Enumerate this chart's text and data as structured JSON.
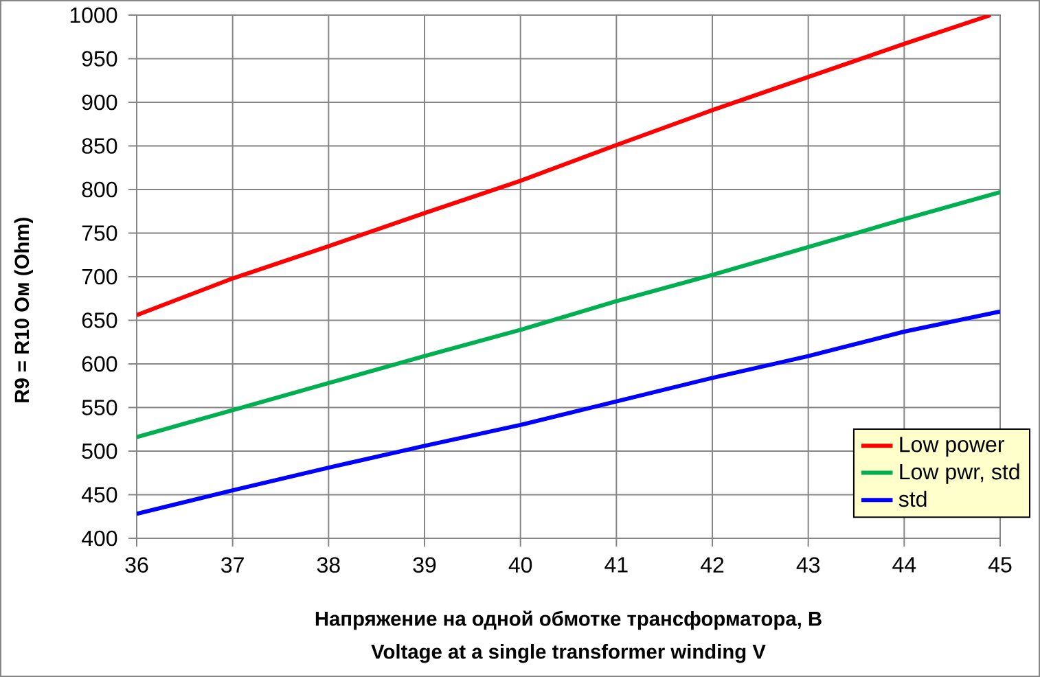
{
  "chart_data": {
    "type": "line",
    "xlabel": "Напряжение на одной обмотке трансформатора, В\nVoltage at a single transformer winding V",
    "ylabel": "R9 = R10 Ом (Ohm)",
    "x": [
      36,
      37,
      38,
      39,
      40,
      41,
      42,
      43,
      44,
      45
    ],
    "series": [
      {
        "name": "Low power",
        "color": "#ff0000",
        "x": [
          36,
          37,
          38,
          39,
          40,
          41,
          42,
          43,
          44,
          44.9
        ],
        "values": [
          656,
          698,
          735,
          773,
          810,
          851,
          891,
          929,
          967,
          1000
        ]
      },
      {
        "name": "Low pwr, std",
        "color": "#00b050",
        "values": [
          516,
          547,
          578,
          609,
          639,
          672,
          702,
          734,
          766,
          797
        ]
      },
      {
        "name": "std",
        "color": "#0000ff",
        "values": [
          428,
          455,
          481,
          506,
          530,
          557,
          584,
          609,
          637,
          660
        ]
      }
    ],
    "xlim": [
      36,
      45
    ],
    "ylim": [
      400,
      1000
    ],
    "xticks": [
      36,
      37,
      38,
      39,
      40,
      41,
      42,
      43,
      44,
      45
    ],
    "yticks": [
      400,
      450,
      500,
      550,
      600,
      650,
      700,
      750,
      800,
      850,
      900,
      950,
      1000
    ],
    "grid": true,
    "legend": "bottom right"
  }
}
